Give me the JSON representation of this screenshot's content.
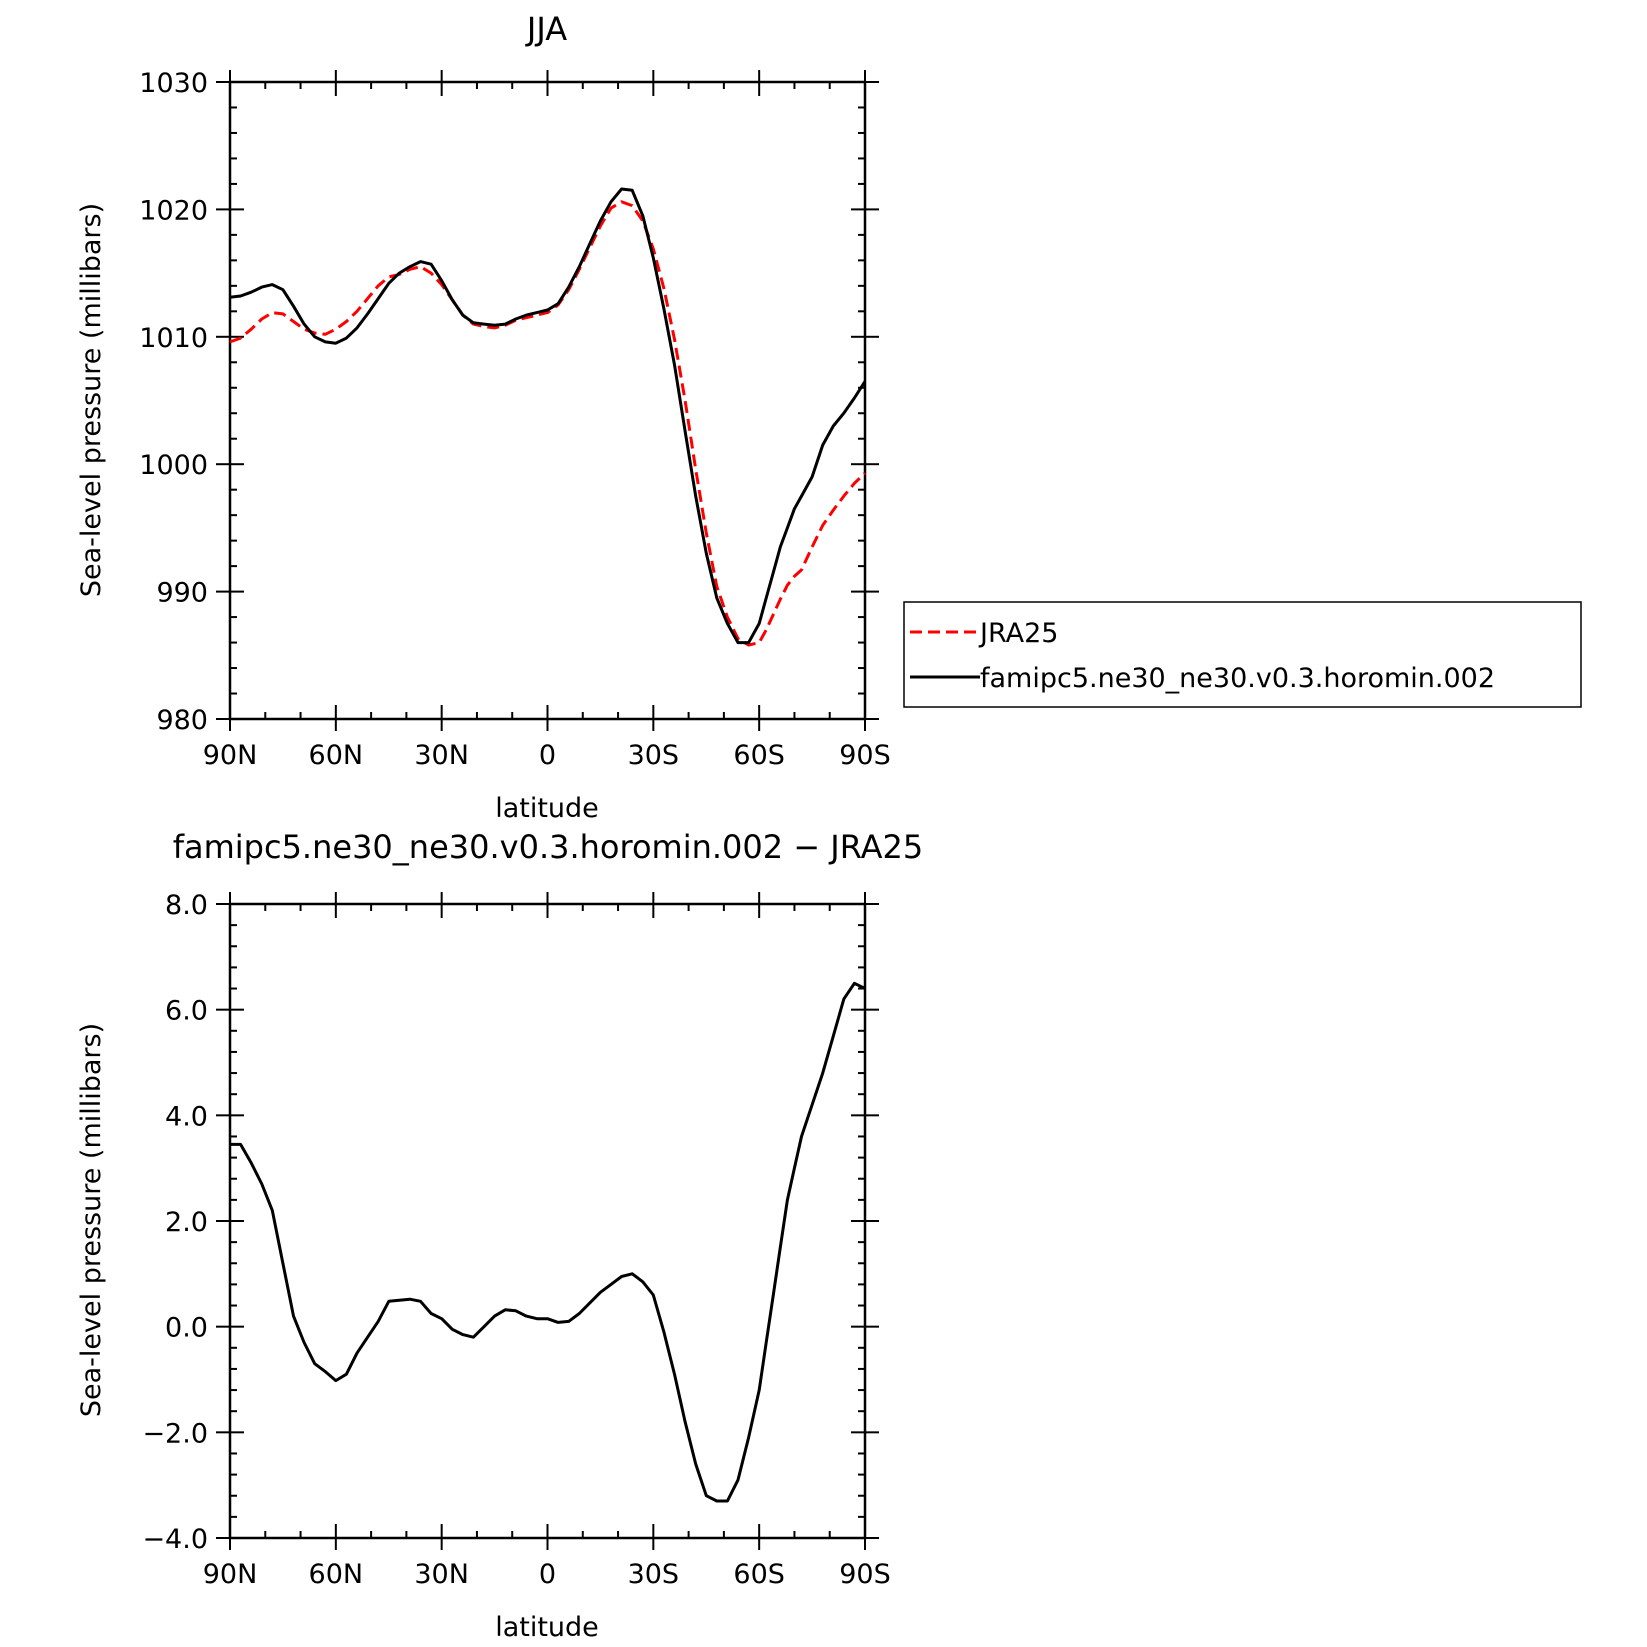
{
  "chart_data": [
    {
      "type": "line",
      "title": "JJA",
      "xlabel": "latitude",
      "ylabel": "Sea-level pressure (millibars)",
      "xlim": [
        90,
        -90
      ],
      "ylim": [
        980,
        1030
      ],
      "x_tick_labels": [
        "90N",
        "60N",
        "30N",
        "0",
        "30S",
        "60S",
        "90S"
      ],
      "x_tick_values": [
        90,
        60,
        30,
        0,
        -30,
        -60,
        -90
      ],
      "y_tick_labels": [
        "980",
        "990",
        "1000",
        "1010",
        "1020",
        "1030"
      ],
      "y_tick_values": [
        980,
        990,
        1000,
        1010,
        1020,
        1030
      ],
      "legend": {
        "placement": "right"
      },
      "series": [
        {
          "name": "JRA25",
          "color": "#ff0000",
          "dash": "dashed",
          "x": [
            90,
            87,
            84,
            81,
            78,
            75,
            72,
            69,
            66,
            63,
            60,
            57,
            54,
            51,
            48,
            45,
            42,
            39,
            36,
            33,
            30,
            27,
            24,
            21,
            18,
            15,
            12,
            9,
            6,
            3,
            0,
            -3,
            -6,
            -9,
            -12,
            -15,
            -18,
            -21,
            -24,
            -27,
            -30,
            -33,
            -36,
            -39,
            -42,
            -45,
            -48,
            -51,
            -54,
            -57,
            -60,
            -62,
            -64,
            -66,
            -68,
            -70,
            -72,
            -75,
            -78,
            -81,
            -84,
            -87,
            -90
          ],
          "values": [
            1009.6,
            1009.9,
            1010.6,
            1011.4,
            1011.9,
            1011.8,
            1011.2,
            1010.6,
            1010.3,
            1010.2,
            1010.6,
            1011.2,
            1012.0,
            1013.0,
            1014.0,
            1014.7,
            1014.9,
            1015.3,
            1015.5,
            1015.0,
            1014.1,
            1012.9,
            1011.7,
            1011.0,
            1010.8,
            1010.7,
            1010.9,
            1011.3,
            1011.5,
            1011.7,
            1011.9,
            1012.5,
            1013.7,
            1015.3,
            1017.0,
            1018.7,
            1020.1,
            1020.6,
            1020.3,
            1019.1,
            1016.9,
            1013.8,
            1009.8,
            1005.0,
            999.6,
            994.6,
            990.4,
            988.0,
            986.3,
            985.8,
            986.0,
            987.0,
            988.2,
            989.4,
            990.5,
            991.2,
            991.7,
            993.5,
            995.2,
            996.4,
            997.5,
            998.5,
            999.3
          ]
        },
        {
          "name": "famipc5.ne30_ne30.v0.3.horomin.002",
          "color": "#000000",
          "dash": "solid",
          "x": [
            90,
            87,
            84,
            81,
            78,
            75,
            72,
            69,
            66,
            63,
            60,
            57,
            54,
            51,
            48,
            45,
            42,
            39,
            36,
            33,
            30,
            27,
            24,
            21,
            18,
            15,
            12,
            9,
            6,
            3,
            0,
            -3,
            -6,
            -9,
            -12,
            -15,
            -18,
            -21,
            -24,
            -27,
            -30,
            -33,
            -36,
            -39,
            -42,
            -45,
            -48,
            -51,
            -54,
            -57,
            -60,
            -62,
            -64,
            -66,
            -68,
            -70,
            -72,
            -75,
            -78,
            -81,
            -84,
            -87,
            -90
          ],
          "values": [
            1013.1,
            1013.2,
            1013.5,
            1013.9,
            1014.1,
            1013.7,
            1012.4,
            1011.0,
            1010.0,
            1009.6,
            1009.5,
            1009.9,
            1010.7,
            1011.8,
            1013.0,
            1014.2,
            1015.0,
            1015.5,
            1015.9,
            1015.7,
            1014.4,
            1012.9,
            1011.7,
            1011.1,
            1011.0,
            1010.9,
            1011.0,
            1011.4,
            1011.7,
            1011.9,
            1012.1,
            1012.6,
            1013.9,
            1015.5,
            1017.3,
            1019.1,
            1020.6,
            1021.6,
            1021.5,
            1019.5,
            1016.2,
            1012.2,
            1007.8,
            1002.6,
            997.5,
            993.0,
            989.5,
            987.5,
            986.0,
            986.0,
            987.5,
            989.5,
            991.5,
            993.5,
            995.0,
            996.5,
            997.5,
            999.0,
            1001.5,
            1003.0,
            1004.0,
            1005.2,
            1006.5
          ]
        }
      ]
    },
    {
      "type": "line",
      "title": "famipc5.ne30_ne30.v0.3.horomin.002 − JRA25",
      "xlabel": "latitude",
      "ylabel": "Sea-level pressure (millibars)",
      "xlim": [
        90,
        -90
      ],
      "ylim": [
        -4.0,
        8.0
      ],
      "x_tick_labels": [
        "90N",
        "60N",
        "30N",
        "0",
        "30S",
        "60S",
        "90S"
      ],
      "x_tick_values": [
        90,
        60,
        30,
        0,
        -30,
        -60,
        -90
      ],
      "y_tick_labels": [
        "−4.0",
        "−2.0",
        "0.0",
        "2.0",
        "4.0",
        "6.0",
        "8.0"
      ],
      "y_tick_values": [
        -4,
        -2,
        0,
        2,
        4,
        6,
        8
      ],
      "series": [
        {
          "color": "#000000",
          "dash": "solid",
          "x": [
            90,
            87,
            84,
            81,
            78,
            75,
            72,
            69,
            66,
            63,
            60,
            57,
            54,
            51,
            48,
            45,
            42,
            39,
            36,
            33,
            30,
            27,
            24,
            21,
            18,
            15,
            12,
            9,
            6,
            3,
            0,
            -3,
            -6,
            -9,
            -12,
            -15,
            -18,
            -21,
            -24,
            -27,
            -30,
            -33,
            -36,
            -39,
            -42,
            -45,
            -48,
            -51,
            -54,
            -57,
            -60,
            -62,
            -64,
            -66,
            -68,
            -70,
            -72,
            -75,
            -78,
            -81,
            -84,
            -87,
            -90
          ],
          "values": [
            3.45,
            3.45,
            3.1,
            2.7,
            2.2,
            1.2,
            0.2,
            -0.3,
            -0.7,
            -0.85,
            -1.02,
            -0.9,
            -0.5,
            -0.2,
            0.1,
            0.48,
            0.5,
            0.52,
            0.48,
            0.25,
            0.15,
            -0.05,
            -0.15,
            -0.2,
            0.0,
            0.2,
            0.32,
            0.3,
            0.2,
            0.15,
            0.15,
            0.08,
            0.1,
            0.25,
            0.45,
            0.65,
            0.8,
            0.95,
            1.0,
            0.85,
            0.6,
            -0.1,
            -0.9,
            -1.8,
            -2.6,
            -3.2,
            -3.3,
            -3.3,
            -2.9,
            -2.1,
            -1.2,
            -0.3,
            0.6,
            1.5,
            2.4,
            3.0,
            3.6,
            4.2,
            4.8,
            5.5,
            6.2,
            6.5,
            6.4
          ]
        }
      ]
    }
  ]
}
